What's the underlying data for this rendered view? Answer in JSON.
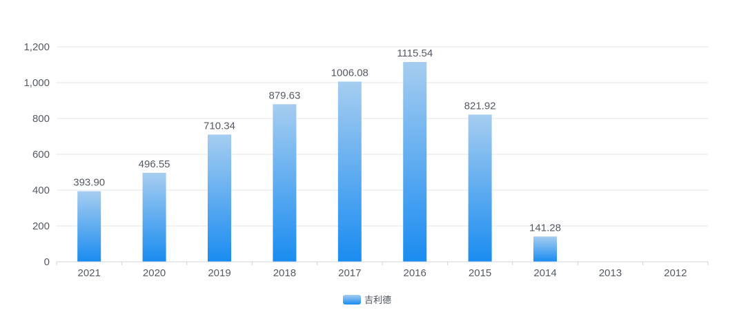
{
  "chart_data": {
    "type": "bar",
    "categories": [
      "2021",
      "2020",
      "2019",
      "2018",
      "2017",
      "2016",
      "2015",
      "2014",
      "2013",
      "2012"
    ],
    "series": [
      {
        "name": "吉利德",
        "values": [
          393.9,
          496.55,
          710.34,
          879.63,
          1006.08,
          1115.54,
          821.92,
          141.28,
          null,
          null
        ],
        "labels": [
          "393.90",
          "496.55",
          "710.34",
          "879.63",
          "1006.08",
          "1115.54",
          "821.92",
          "141.28",
          "",
          ""
        ]
      }
    ],
    "ylim": [
      0,
      1200
    ],
    "yticks": [
      0,
      200,
      400,
      600,
      800,
      1000,
      1200
    ],
    "ytick_labels": [
      "0",
      "200",
      "400",
      "600",
      "800",
      "1,000",
      "1,200"
    ],
    "grid": true,
    "legend_position": "bottom-center",
    "colors": {
      "bar_top": "#a6cdf0",
      "bar_bottom": "#1a8cf0",
      "grid": "#e3e6ea",
      "axis": "#cfd3d8",
      "text": "#555a63"
    }
  }
}
